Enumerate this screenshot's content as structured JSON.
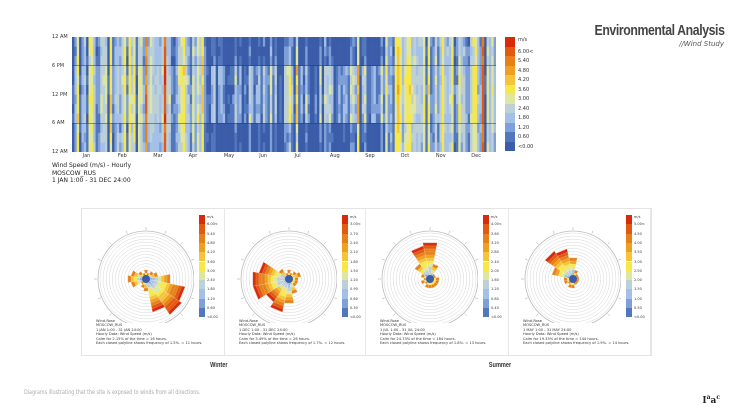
{
  "header": {
    "title": "Environmental Analysis",
    "subtitle": "//Wind Study"
  },
  "footer": {
    "text": "Diagrams illustrating that the site is exposed to winds from all directions.",
    "logo": "Iaac"
  },
  "seasons": {
    "winter": "Winter",
    "summer": "Summer"
  },
  "colors": {
    "scale": [
      "#3b5ca8",
      "#5377bd",
      "#7e9fd8",
      "#a4c0e8",
      "#bcd0d6",
      "#dfe6a0",
      "#f7e84a",
      "#f5c43a",
      "#f0a020",
      "#e8801a",
      "#e25a12",
      "#d92a0a"
    ]
  },
  "chart_data": [
    {
      "type": "heatmap",
      "title": "Wind Speed (m/s) - Hourly",
      "subtitle": "MOSCOW_RUS",
      "period": "1 JAN 1:00 - 31 DEC 24:00",
      "x_ticks": [
        "Jan",
        "Feb",
        "Mar",
        "Apr",
        "May",
        "Jun",
        "Jul",
        "Aug",
        "Sep",
        "Oct",
        "Nov",
        "Dec"
      ],
      "y_ticks": [
        "12 AM",
        "6 PM",
        "12 PM",
        "6 AM",
        "12 AM"
      ],
      "legend_unit": "m/s",
      "legend_ticks": [
        "6.00<",
        "5.40",
        "4.80",
        "4.20",
        "3.60",
        "3.00",
        "2.40",
        "1.80",
        "1.20",
        "0.60",
        "<0.00"
      ]
    },
    {
      "type": "wind-rose",
      "lines": [
        "Wind-Rose",
        "MOSCOW_RUS",
        "1 JAN 1:00 - 31 JAN 24:00",
        "Hourly Data: Wind Speed (m/s)",
        "Calm for 2.15% of the time = 16 hours.",
        "Each closed polyline shows frequency of 1.5%. = 11 hours."
      ],
      "legend_unit": "m/s",
      "legend_ticks": [
        "6.00<",
        "5.40",
        "4.80",
        "4.20",
        "3.60",
        "3.00",
        "2.40",
        "1.80",
        "1.20",
        "0.60",
        "<0.00"
      ],
      "petals": [
        [
          0,
          3
        ],
        [
          22.5,
          2
        ],
        [
          45,
          3
        ],
        [
          67.5,
          4
        ],
        [
          90,
          8
        ],
        [
          112.5,
          13
        ],
        [
          135,
          14
        ],
        [
          157.5,
          11
        ],
        [
          180,
          4
        ],
        [
          202.5,
          3
        ],
        [
          225,
          2
        ],
        [
          247.5,
          5
        ],
        [
          270,
          6
        ],
        [
          292.5,
          5
        ],
        [
          315,
          3
        ],
        [
          337.5,
          2
        ]
      ]
    },
    {
      "type": "wind-rose",
      "lines": [
        "Wind-Rose",
        "MOSCOW_RUS",
        "1 DEC 1:00 - 31 DEC 24:00",
        "Hourly Data: Wind Speed (m/s)",
        "Calm for 3.49% of the time = 26 hours.",
        "Each closed polyline shows frequency of 1.7%. = 12 hours."
      ],
      "legend_unit": "m/s",
      "legend_ticks": [
        "3.00<",
        "2.70",
        "2.40",
        "2.10",
        "1.80",
        "1.50",
        "1.20",
        "0.90",
        "0.60",
        "0.30",
        "<0.00"
      ],
      "petals": [
        [
          0,
          3
        ],
        [
          22.5,
          2
        ],
        [
          45,
          3
        ],
        [
          67.5,
          4
        ],
        [
          90,
          3
        ],
        [
          112.5,
          3
        ],
        [
          135,
          3
        ],
        [
          157.5,
          5
        ],
        [
          180,
          8
        ],
        [
          202.5,
          11
        ],
        [
          225,
          9
        ],
        [
          247.5,
          12
        ],
        [
          270,
          12
        ],
        [
          292.5,
          10
        ],
        [
          315,
          4
        ],
        [
          337.5,
          2
        ]
      ]
    },
    {
      "type": "wind-rose",
      "lines": [
        "Wind-Rose",
        "MOSCOW_RUS",
        "1 JUL 1:00 - 31 JUL 24:00",
        "Hourly Data: Wind Speed (m/s)",
        "Calm for 24.73% of the time = 184 hours.",
        "Each closed polyline shows frequency of 1.8%. = 13 hours."
      ],
      "legend_unit": "m/s",
      "legend_ticks": [
        "4.00<",
        "3.60",
        "3.20",
        "2.80",
        "2.40",
        "2.00",
        "1.60",
        "1.20",
        "0.80",
        "0.40",
        "<0.00"
      ],
      "petals": [
        [
          0,
          12
        ],
        [
          22.5,
          5
        ],
        [
          45,
          2
        ],
        [
          67.5,
          2
        ],
        [
          90,
          3
        ],
        [
          112.5,
          3
        ],
        [
          135,
          3
        ],
        [
          157.5,
          3
        ],
        [
          180,
          3
        ],
        [
          202.5,
          3
        ],
        [
          225,
          2
        ],
        [
          247.5,
          3
        ],
        [
          270,
          2
        ],
        [
          292.5,
          3
        ],
        [
          315,
          6
        ],
        [
          337.5,
          11
        ]
      ]
    },
    {
      "type": "wind-rose",
      "lines": [
        "Wind-Rose",
        "MOSCOW_RUS",
        "1 MAY 1:00 - 31 MAY 24:00",
        "Hourly Data: Wind Speed (m/s)",
        "Calm for 19.35% of the time = 144 hours.",
        "Each closed polyline shows frequency of 1.9%. = 14 hours."
      ],
      "legend_unit": "m/s",
      "legend_ticks": [
        "5.00<",
        "4.50",
        "4.00",
        "3.50",
        "3.00",
        "2.50",
        "2.00",
        "1.50",
        "1.00",
        "0.50",
        "<0.00"
      ],
      "petals": [
        [
          0,
          7
        ],
        [
          22.5,
          3
        ],
        [
          45,
          2
        ],
        [
          67.5,
          2
        ],
        [
          90,
          2
        ],
        [
          112.5,
          2
        ],
        [
          135,
          2
        ],
        [
          157.5,
          2
        ],
        [
          180,
          3
        ],
        [
          202.5,
          3
        ],
        [
          225,
          2
        ],
        [
          247.5,
          3
        ],
        [
          270,
          3
        ],
        [
          292.5,
          7
        ],
        [
          315,
          11
        ],
        [
          337.5,
          10
        ]
      ]
    }
  ]
}
